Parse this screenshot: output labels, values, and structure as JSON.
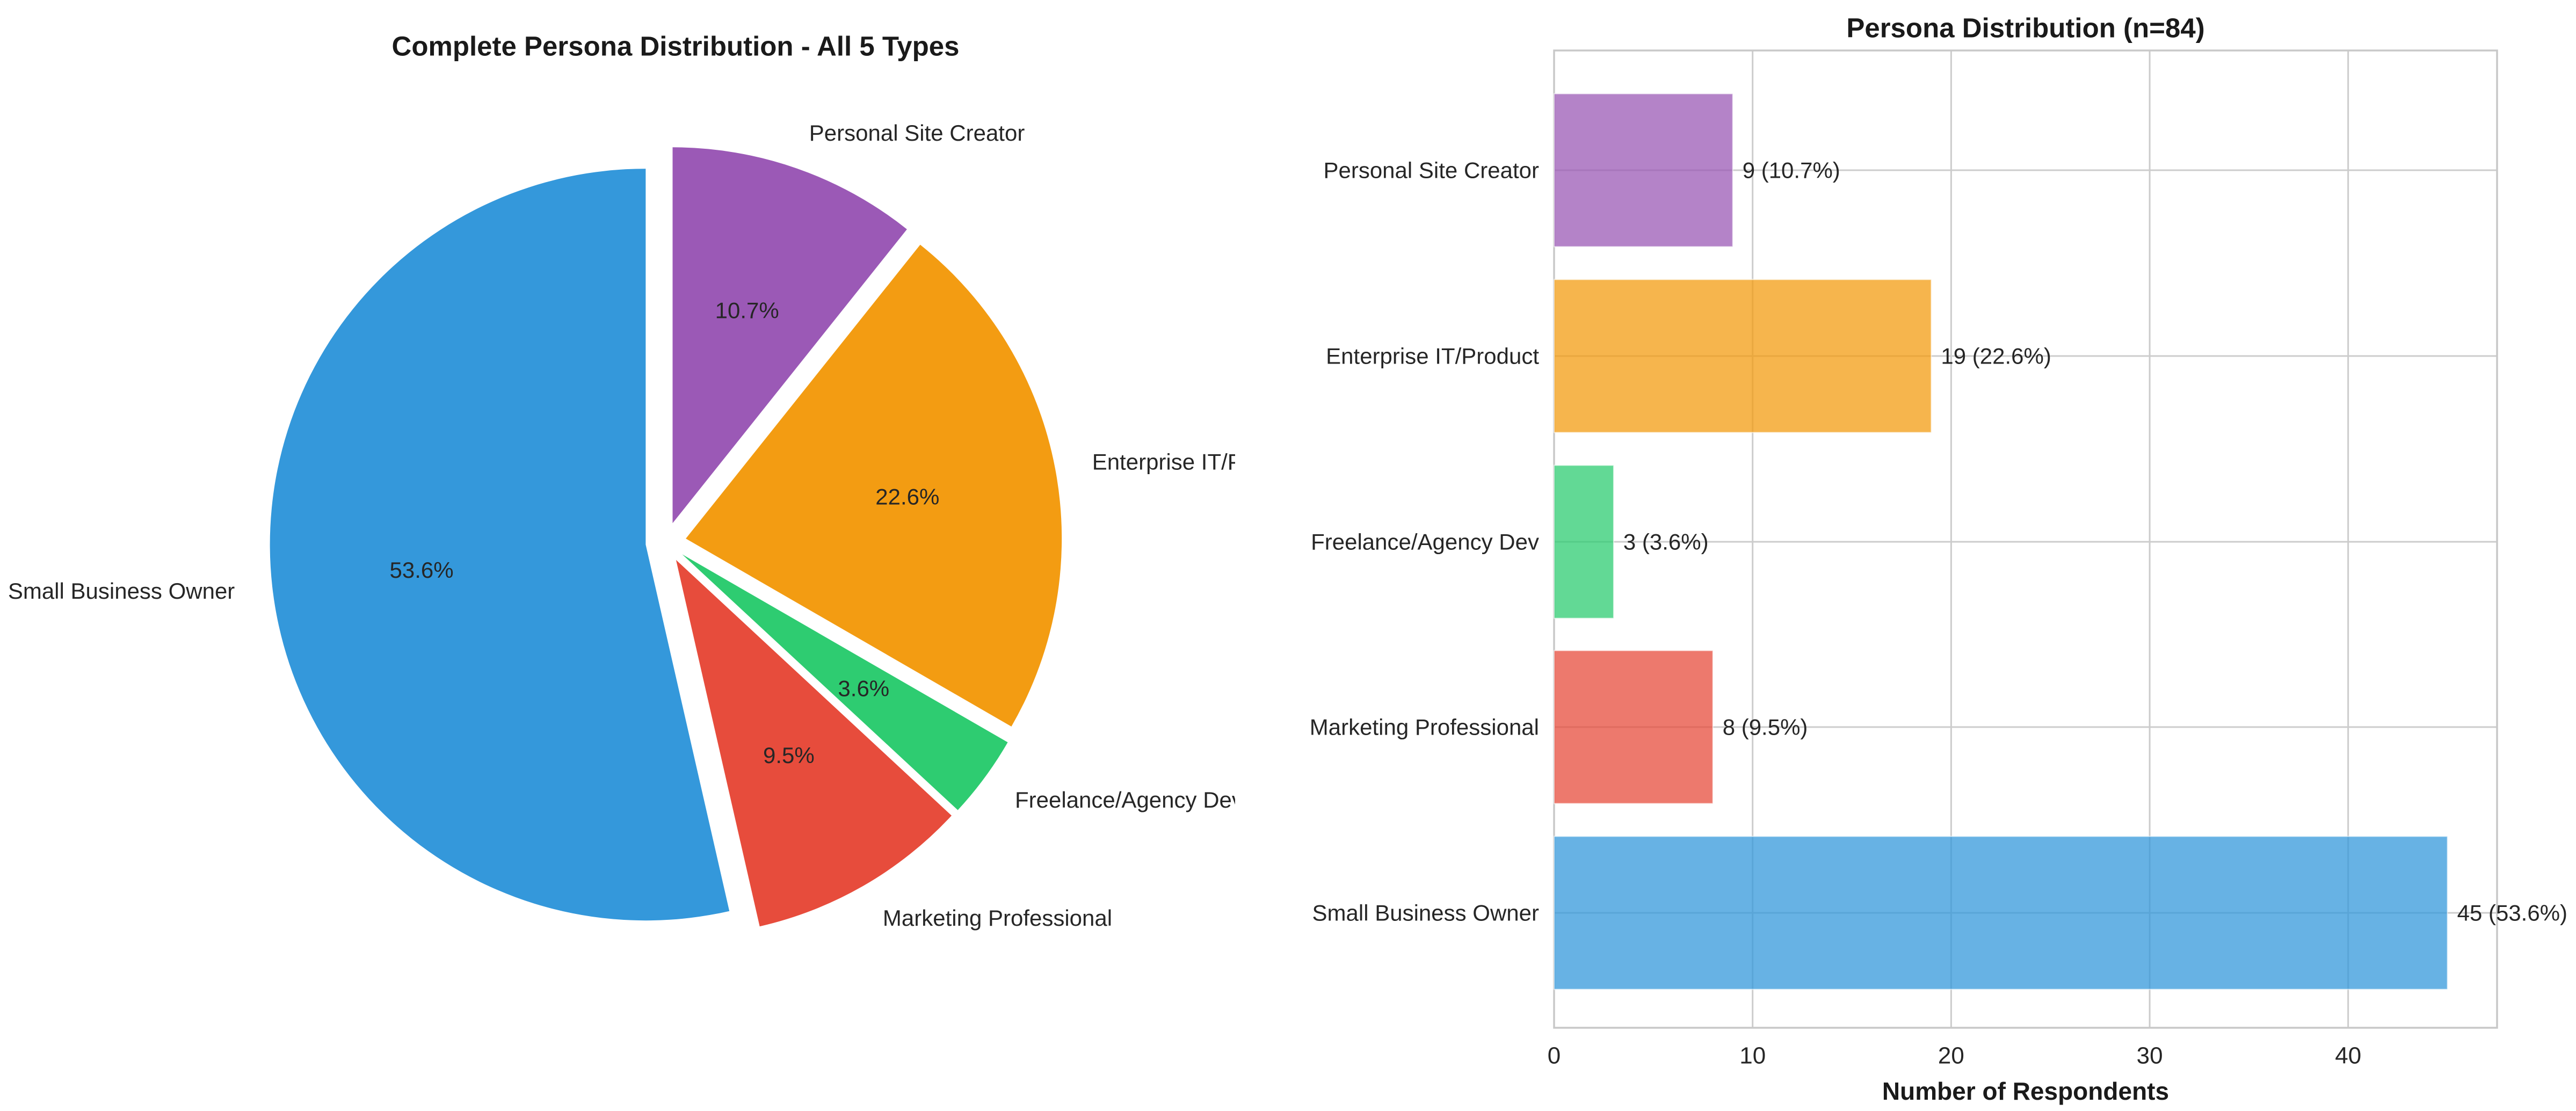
{
  "figure": {
    "background": "#ffffff",
    "text_color": "#262626",
    "title_color": "#1a1a1a"
  },
  "chart_data": [
    {
      "type": "pie",
      "title": "Complete Persona Distribution - All 5 Types",
      "labels": [
        "Personal Site Creator",
        "Enterprise IT/Product",
        "Freelance/Agency Dev",
        "Marketing Professional",
        "Small Business Owner"
      ],
      "values": [
        9,
        19,
        3,
        8,
        45
      ],
      "percent_labels": [
        "10.7%",
        "22.6%",
        "3.6%",
        "9.5%",
        "53.6%"
      ],
      "colors": [
        "#9b59b6",
        "#f39c12",
        "#2ecc71",
        "#e74c3c",
        "#3498db"
      ],
      "start_angle": 90,
      "direction": "clockwise",
      "explode": 0.054,
      "legend_position": "none"
    },
    {
      "type": "bar",
      "orientation": "horizontal",
      "title": "Persona Distribution (n=84)",
      "categories": [
        "Personal Site Creator",
        "Enterprise IT/Product",
        "Freelance/Agency Dev",
        "Marketing Professional",
        "Small Business Owner"
      ],
      "values": [
        9,
        19,
        3,
        8,
        45
      ],
      "value_labels": [
        "9 (10.7%)",
        "19 (22.6%)",
        "3 (3.6%)",
        "8 (9.5%)",
        "45 (53.6%)"
      ],
      "colors": [
        "#9b59b6",
        "#f39c12",
        "#2ecc71",
        "#e74c3c",
        "#3498db"
      ],
      "bar_alpha": 0.75,
      "xlabel": "Number of Respondents",
      "xticks": [
        0,
        10,
        20,
        30,
        40
      ],
      "xlim": [
        0,
        47.5
      ],
      "grid": true,
      "grid_color": "#cccccc",
      "spine_color": "#c8c8c8"
    }
  ]
}
